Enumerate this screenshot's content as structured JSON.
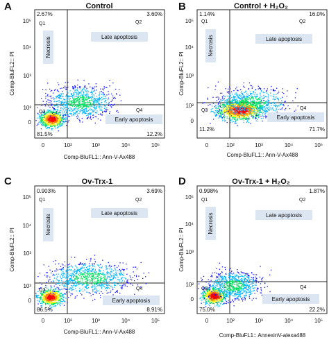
{
  "chart_data": [
    {
      "type": "scatter",
      "panel_letter": "A",
      "title": "Control",
      "xlabel": "Comp-BluFL1:: Ann-V-Ax488",
      "ylabel": "Comp-BluFL2:: PI",
      "xlim": [
        -50,
        100000
      ],
      "ylim": [
        -50,
        100000
      ],
      "x_ticks": [
        "0",
        "10²",
        "10³",
        "10⁴",
        "10⁵"
      ],
      "y_ticks": [
        "0",
        "10²",
        "10³",
        "10⁴",
        "10⁵"
      ],
      "quadrant_gate": {
        "x": 200,
        "y": 150
      },
      "quadrants": [
        {
          "name": "Q1",
          "label": "Necrosis",
          "percent": "2.67%"
        },
        {
          "name": "Q2",
          "label": "Late apoptosis",
          "percent": "3.60%"
        },
        {
          "name": "Q3",
          "label": "",
          "percent": "81.5%"
        },
        {
          "name": "Q4",
          "label": "Early apoptosis",
          "percent": "12.2%"
        }
      ]
    },
    {
      "type": "scatter",
      "panel_letter": "B",
      "title": "Control + H₂O₂",
      "xlabel": "Comp-BluFL1:: Ann-V-Ax488",
      "ylabel": "Comp-BluFL2:: PI",
      "xlim": [
        -50,
        100000
      ],
      "ylim": [
        -50,
        100000
      ],
      "x_ticks": [
        "0",
        "10²",
        "10³",
        "10⁴",
        "10⁵"
      ],
      "y_ticks": [
        "0",
        "10²",
        "10³",
        "10⁴",
        "10⁵"
      ],
      "quadrant_gate": {
        "x": 200,
        "y": 150
      },
      "quadrants": [
        {
          "name": "Q1",
          "label": "Necrosis",
          "percent": "1.14%"
        },
        {
          "name": "Q2",
          "label": "Late apoptosis",
          "percent": "16.0%"
        },
        {
          "name": "Q3",
          "label": "",
          "percent": "11.2%"
        },
        {
          "name": "Q4",
          "label": "Early apoptosis",
          "percent": "71.7%"
        }
      ]
    },
    {
      "type": "scatter",
      "panel_letter": "C",
      "title": "Ov-Trx-1",
      "xlabel": "Comp-BluFL1:: Ann-V-Ax488",
      "ylabel": "Comp-BluFL2:: PI",
      "xlim": [
        -50,
        100000
      ],
      "ylim": [
        -50,
        100000
      ],
      "x_ticks": [
        "0",
        "10²",
        "10³",
        "10⁴",
        "10⁵"
      ],
      "y_ticks": [
        "0",
        "10²",
        "10³",
        "10⁴",
        "10⁵"
      ],
      "quadrant_gate": {
        "x": 200,
        "y": 150
      },
      "quadrants": [
        {
          "name": "Q1",
          "label": "Necrosis",
          "percent": "0.903%"
        },
        {
          "name": "Q2",
          "label": "Late apoptosis",
          "percent": "3.69%"
        },
        {
          "name": "Q3",
          "label": "",
          "percent": "86.5%"
        },
        {
          "name": "Q4",
          "label": "Early apoptosis",
          "percent": "8.91%"
        }
      ]
    },
    {
      "type": "scatter",
      "panel_letter": "D",
      "title": "Ov-Trx-1 + H₂O₂",
      "xlabel": "Comp-BluFL1:: AnnexinV-alexa488",
      "ylabel": "Comp-BluFL2:: PI",
      "xlim": [
        -50,
        100000
      ],
      "ylim": [
        -50,
        100000
      ],
      "x_ticks": [
        "0",
        "10²",
        "10³",
        "10⁴",
        "10⁵"
      ],
      "y_ticks": [
        "0",
        "10²",
        "10³",
        "10⁴",
        "10⁵"
      ],
      "quadrant_gate": {
        "x": 200,
        "y": 150
      },
      "quadrants": [
        {
          "name": "Q1",
          "label": "Necrosis",
          "percent": "0.998%"
        },
        {
          "name": "Q2",
          "label": "Late apoptosis",
          "percent": "1.87%"
        },
        {
          "name": "Q3",
          "label": "",
          "percent": "75.0%"
        },
        {
          "name": "Q4",
          "label": "Early apoptosis",
          "percent": "22.2%"
        }
      ]
    }
  ],
  "colors": {
    "label_box": "#dce6f2",
    "density": [
      "#1010ff",
      "#00b4ff",
      "#00e060",
      "#f0f000",
      "#ff8000",
      "#ff0000"
    ]
  }
}
